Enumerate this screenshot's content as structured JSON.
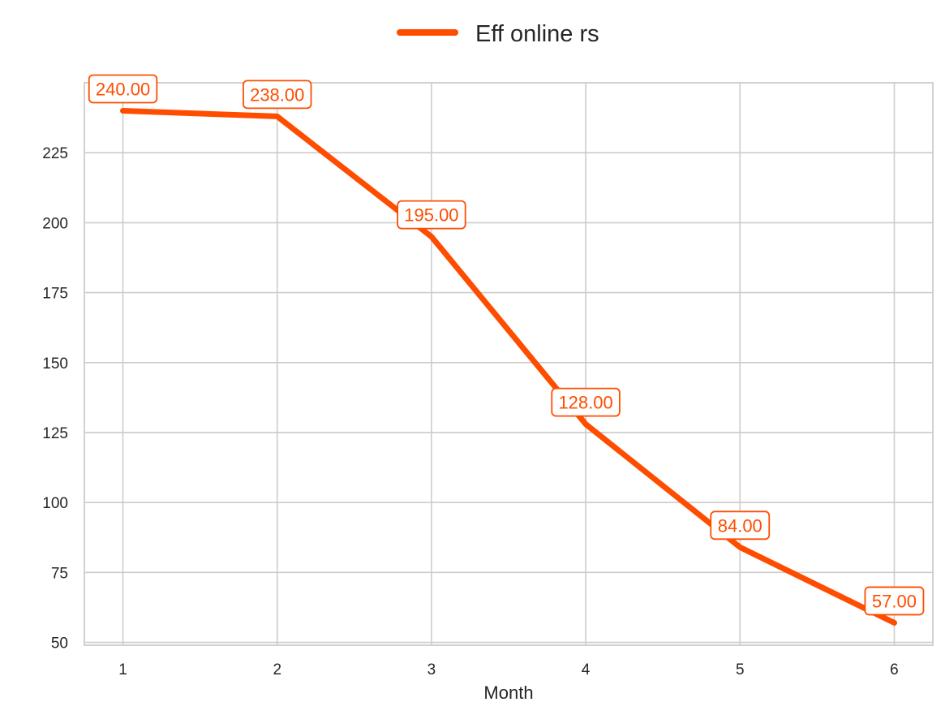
{
  "chart_data": {
    "type": "line",
    "x": [
      1,
      2,
      3,
      4,
      5,
      6
    ],
    "series": [
      {
        "name": "Eff online rs",
        "values": [
          240,
          238,
          195,
          128,
          84,
          57
        ],
        "labels": [
          "240.00",
          "238.00",
          "195.00",
          "128.00",
          "84.00",
          "57.00"
        ],
        "color": "#ff4d00"
      }
    ],
    "title": "",
    "xlabel": "Month",
    "ylabel": "",
    "xlim": [
      0.75,
      6.25
    ],
    "ylim": [
      49,
      250
    ],
    "x_ticks": [
      1,
      2,
      3,
      4,
      5,
      6
    ],
    "x_tick_labels": [
      "1",
      "2",
      "3",
      "4",
      "5",
      "6"
    ],
    "y_ticks": [
      50,
      75,
      100,
      125,
      150,
      175,
      200,
      225
    ],
    "y_tick_labels": [
      "50",
      "75",
      "100",
      "125",
      "150",
      "175",
      "200",
      "225"
    ],
    "grid": true,
    "legend_position": "top-center",
    "colors": {
      "grid": "#cccccc",
      "axes": "#cccccc",
      "text": "#262626",
      "label_box_fill": "#ffffff"
    }
  }
}
